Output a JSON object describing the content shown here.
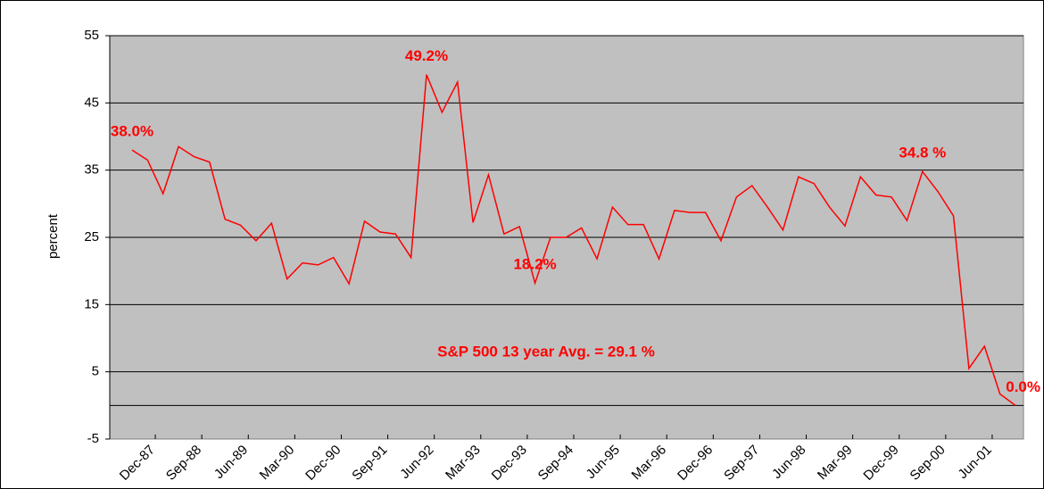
{
  "chart_data": {
    "type": "line",
    "y_label": "percent",
    "annotation": "S&P 500 13 year Avg. = 29.1 %",
    "categories": [
      null,
      "Dec-87",
      null,
      null,
      "Sep-88",
      null,
      null,
      "Jun-89",
      null,
      null,
      "Mar-90",
      null,
      null,
      "Dec-90",
      null,
      null,
      "Sep-91",
      null,
      null,
      "Jun-92",
      null,
      null,
      "Mar-93",
      null,
      null,
      "Dec-93",
      null,
      null,
      "Sep-94",
      null,
      null,
      "Jun-95",
      null,
      null,
      "Mar-96",
      null,
      null,
      "Dec-96",
      null,
      null,
      "Sep-97",
      null,
      null,
      "Jun-98",
      null,
      null,
      "Mar-99",
      null,
      null,
      "Dec-99",
      null,
      null,
      "Sep-00",
      null,
      null,
      "Jun-01",
      null,
      null
    ],
    "series": [
      {
        "color": "#ff0000",
        "values": [
          38.0,
          36.5,
          31.5,
          38.5,
          37,
          36.2,
          27.7,
          26.8,
          24.5,
          27.1,
          18.8,
          21.2,
          20.9,
          22,
          18.1,
          27.4,
          25.8,
          25.5,
          22,
          49.2,
          43.6,
          48.1,
          27.2,
          34.3,
          25.5,
          26.6,
          18.2,
          25,
          25,
          26.4,
          21.8,
          29.5,
          26.9,
          26.9,
          21.8,
          29,
          28.7,
          28.7,
          24.5,
          31,
          32.7,
          29.5,
          26.1,
          34,
          33,
          29.5,
          26.7,
          34,
          31.3,
          31,
          27.5,
          34.8,
          31.8,
          28.2,
          5.5,
          8.8,
          1.7,
          0.0
        ],
        "value_labels": [
          "38.0%",
          null,
          null,
          null,
          null,
          null,
          null,
          null,
          null,
          null,
          null,
          null,
          null,
          null,
          null,
          null,
          null,
          null,
          null,
          "49.2%",
          null,
          null,
          null,
          null,
          null,
          null,
          "18.2%",
          null,
          null,
          null,
          null,
          null,
          null,
          null,
          null,
          null,
          null,
          null,
          null,
          null,
          null,
          null,
          null,
          null,
          null,
          null,
          null,
          null,
          null,
          null,
          null,
          "34.8 %",
          null,
          null,
          null,
          null,
          null,
          "0.0%"
        ]
      }
    ],
    "ylim": [
      -5,
      55
    ],
    "yticks": [
      -5,
      5,
      15,
      25,
      35,
      45,
      55
    ],
    "grid": true,
    "background": "#c0c0c0"
  }
}
